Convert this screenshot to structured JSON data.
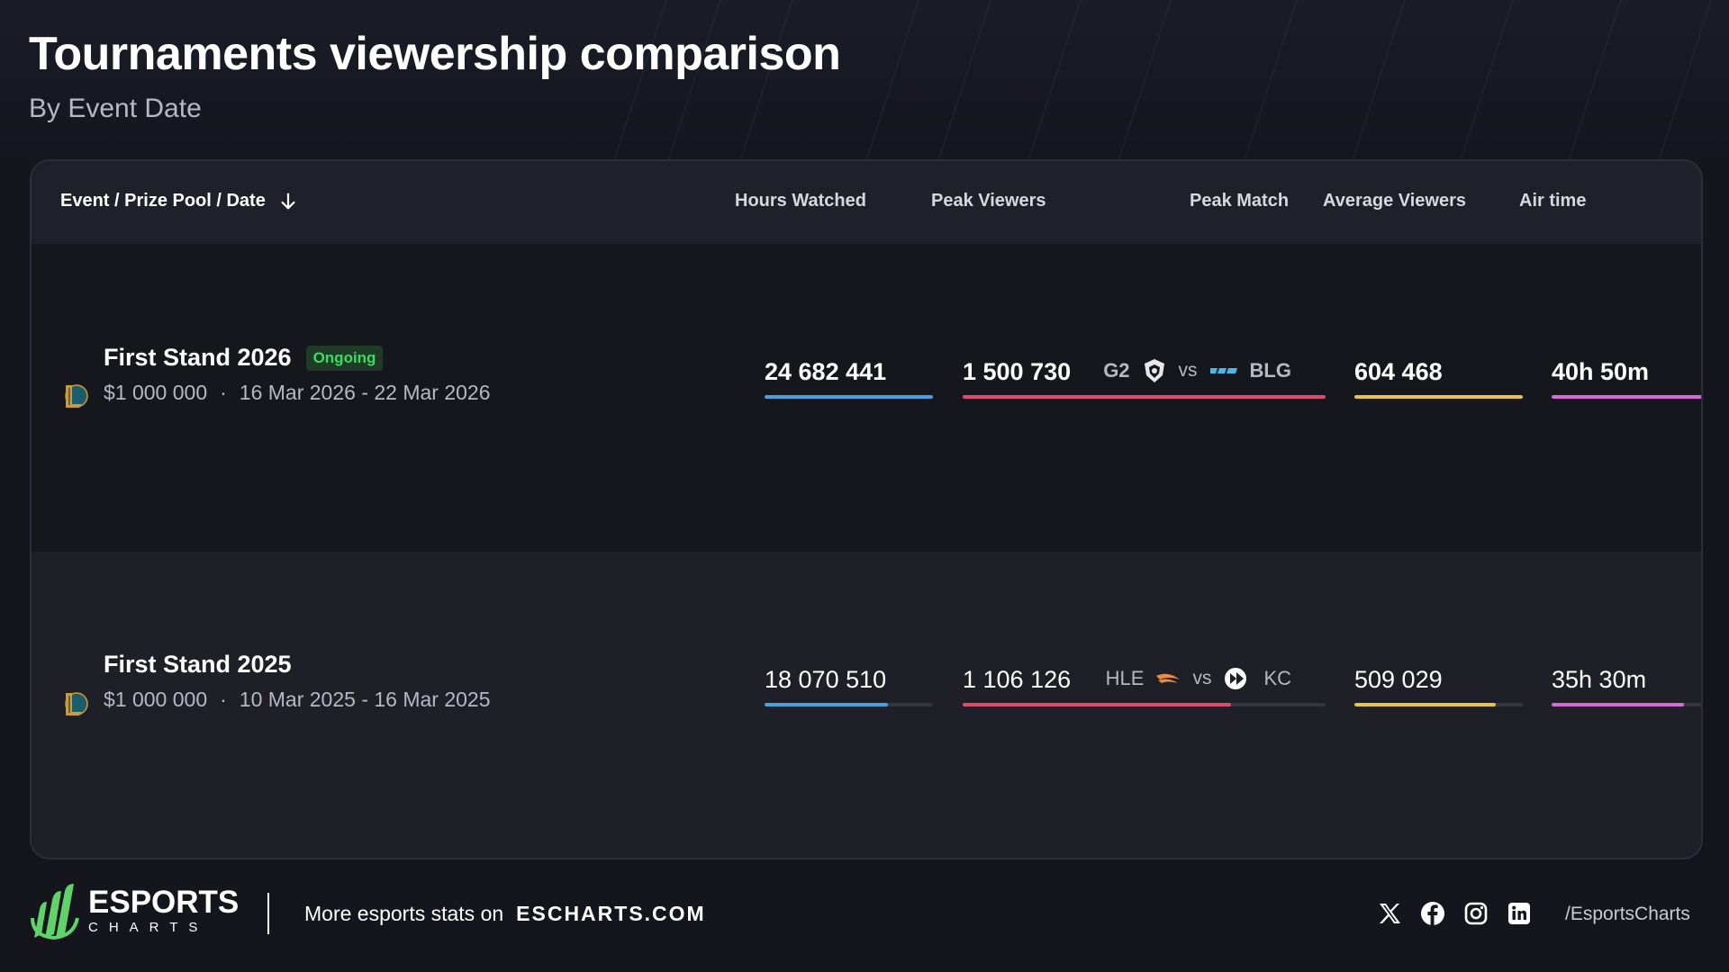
{
  "header": {
    "title": "Tournaments viewership comparison",
    "subtitle": "By Event Date"
  },
  "table": {
    "columns": {
      "event": "Event / Prize Pool / Date",
      "hours": "Hours Watched",
      "peak": "Peak Viewers",
      "peak_match": "Peak Match",
      "avg": "Average Viewers",
      "air": "Air time"
    },
    "rows": [
      {
        "name": "First Stand 2026",
        "badge": "Ongoing",
        "prize": "$1 000 000",
        "sep": "·",
        "dates": "16 Mar 2026 - 22 Mar 2026",
        "hours": "24 682 441",
        "peak": "1 500 730",
        "team1": "G2",
        "vs": "vs",
        "team2": "BLG",
        "avg": "604 468",
        "air": "40h 50m",
        "fill": {
          "hours": 1.0,
          "peak": 1.0,
          "avg": 1.0,
          "air": 1.0
        }
      },
      {
        "name": "First Stand 2025",
        "prize": "$1 000 000",
        "sep": "·",
        "dates": "10 Mar 2025 - 16 Mar 2025",
        "hours": "18 070 510",
        "peak": "1 106 126",
        "team1": "HLE",
        "vs": "vs",
        "team2": "KC",
        "avg": "509 029",
        "air": "35h 30m",
        "fill": {
          "hours": 0.73,
          "peak": 0.74,
          "avg": 0.84,
          "air": 0.87
        }
      }
    ]
  },
  "colors": {
    "hours": "#4a9fe0",
    "peak": "#e04a6e",
    "avg": "#e8c34a",
    "air": "#d86ad6",
    "ongoing": "#3ddc62"
  },
  "footer": {
    "brand_main": "ESPORTS",
    "brand_sub": "CHARTS",
    "promo_text": "More esports stats on",
    "promo_site": "ESCHARTS.COM",
    "handle": "/EsportsCharts",
    "icons": [
      "x-icon",
      "facebook-icon",
      "instagram-icon",
      "linkedin-icon"
    ]
  }
}
